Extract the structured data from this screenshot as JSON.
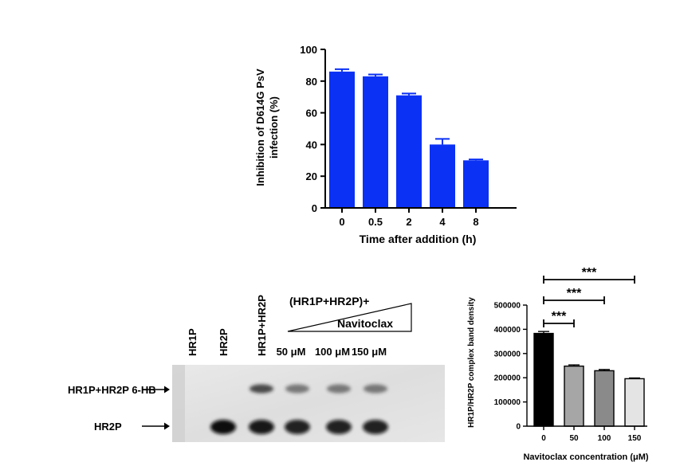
{
  "chart_data": [
    {
      "type": "bar",
      "title": "",
      "xlabel": "Time after addition (h)",
      "ylabel_lines": [
        "Inhibition of D614G PsV",
        "infection (%)"
      ],
      "categories": [
        "0",
        "0.5",
        "2",
        "4",
        "8"
      ],
      "values": [
        86,
        83,
        71,
        40,
        30
      ],
      "errors": [
        1.5,
        1.2,
        1.2,
        3.5,
        0.6
      ],
      "ylim": [
        0,
        100
      ],
      "yticks": [
        0,
        20,
        40,
        60,
        80,
        100
      ],
      "ytick_labels": [
        "0",
        "20",
        "40",
        "60",
        "80",
        "100"
      ],
      "bar_color": "#0b31f5"
    },
    {
      "type": "bar",
      "title": "",
      "xlabel": "Navitoclax concentration (μM)",
      "ylabel": "HR1P/HR2P complex band density",
      "categories": [
        "0",
        "50",
        "100",
        "150"
      ],
      "values": [
        383000,
        248000,
        229000,
        196000
      ],
      "errors": [
        8000,
        5000,
        5000,
        3000
      ],
      "ylim": [
        0,
        500000
      ],
      "yticks": [
        0,
        100000,
        200000,
        300000,
        400000,
        500000
      ],
      "ytick_labels": [
        "0",
        "100000",
        "200000",
        "300000",
        "400000",
        "500000"
      ],
      "bar_colors": [
        "#000000",
        "#a6a6a6",
        "#8a8a8a",
        "#e4e4e4"
      ],
      "significance": [
        {
          "from": "0",
          "to": "50",
          "label": "***"
        },
        {
          "from": "0",
          "to": "100",
          "label": "***"
        },
        {
          "from": "0",
          "to": "150",
          "label": "***"
        }
      ]
    }
  ],
  "gel": {
    "lane_labels": [
      "HR1P",
      "HR2P",
      "HR1P+HR2P"
    ],
    "group_label": "(HR1P+HR2P)+",
    "wedge_label": "Navitoclax",
    "concentrations": [
      "50 μM",
      "100 μM",
      "150 μM"
    ],
    "band_labels": [
      "HR1P+HR2P 6-HB",
      "HR2P"
    ],
    "lanes": [
      {
        "six_hb": 0.0,
        "hr2p": 0.0
      },
      {
        "six_hb": 0.0,
        "hr2p": 1.0
      },
      {
        "six_hb": 0.8,
        "hr2p": 0.95
      },
      {
        "six_hb": 0.55,
        "hr2p": 0.9
      },
      {
        "six_hb": 0.55,
        "hr2p": 0.9
      },
      {
        "six_hb": 0.55,
        "hr2p": 0.9
      }
    ]
  }
}
